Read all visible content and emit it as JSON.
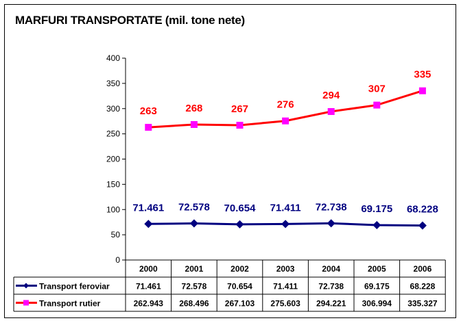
{
  "chart_data": {
    "type": "line",
    "title": "MARFURI TRANSPORTATE (mil. tone nete)",
    "xlabel": "",
    "ylabel": "",
    "categories": [
      "2000",
      "2001",
      "2002",
      "2003",
      "2004",
      "2005",
      "2006"
    ],
    "ylim": [
      0,
      400
    ],
    "yticks": [
      0,
      50,
      100,
      150,
      200,
      250,
      300,
      350,
      400
    ],
    "ytick_labels": [
      "0",
      "50",
      "100",
      "150",
      "200",
      "250",
      "300",
      "350",
      "400"
    ],
    "grid": false,
    "legend_placement": "bottom (data table)",
    "series": [
      {
        "name": "Transport feroviar",
        "color": "#000080",
        "marker": "diamond",
        "marker_color": "#000080",
        "values": [
          71.461,
          72.578,
          70.654,
          71.411,
          72.738,
          69.175,
          68.228
        ],
        "data_labels": [
          "71.461",
          "72.578",
          "70.654",
          "71.411",
          "72.738",
          "69.175",
          "68.228"
        ],
        "table_values": [
          "71.461",
          "72.578",
          "70.654",
          "71.411",
          "72.738",
          "69.175",
          "68.228"
        ]
      },
      {
        "name": "Transport rutier",
        "color": "#ff0000",
        "marker": "square",
        "marker_color": "#ff00ff",
        "values": [
          262.943,
          268.496,
          267.103,
          275.603,
          294.221,
          306.994,
          335.327
        ],
        "data_labels": [
          "263",
          "268",
          "267",
          "276",
          "294",
          "307",
          "335"
        ],
        "table_values": [
          "262.943",
          "268.496",
          "267.103",
          "275.603",
          "294.221",
          "306.994",
          "335.327"
        ]
      }
    ]
  }
}
